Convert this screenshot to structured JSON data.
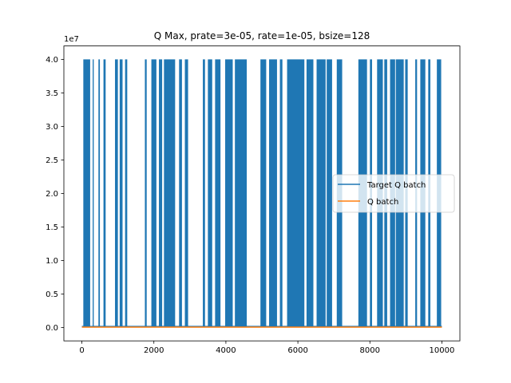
{
  "chart_data": {
    "type": "line",
    "title": "Q Max, prate=3e-05, rate=1e-05, bsize=128",
    "xlabel": "",
    "ylabel": "",
    "y_offset_label": "1e7",
    "xlim": [
      -500,
      10500
    ],
    "ylim": [
      -2000000,
      42000000
    ],
    "x_ticks": [
      0,
      2000,
      4000,
      6000,
      8000,
      10000
    ],
    "x_tick_labels": [
      "0",
      "2000",
      "4000",
      "6000",
      "8000",
      "10000"
    ],
    "y_ticks": [
      0,
      5000000,
      10000000,
      15000000,
      20000000,
      25000000,
      30000000,
      35000000,
      40000000
    ],
    "y_tick_labels": [
      "0.0",
      "0.5",
      "1.0",
      "1.5",
      "2.0",
      "2.5",
      "3.0",
      "3.5",
      "4.0"
    ],
    "grid": false,
    "legend_position": "center-right",
    "series": [
      {
        "name": "Target Q batch",
        "color": "#1f77b4",
        "baseline": 150000,
        "peak": 40000000,
        "dense_spike_ranges": [
          [
            40,
            230
          ],
          [
            300,
            330
          ],
          [
            460,
            500
          ],
          [
            600,
            660
          ],
          [
            920,
            1000
          ],
          [
            1050,
            1130
          ],
          [
            1200,
            1260
          ],
          [
            1750,
            1800
          ],
          [
            1930,
            2070
          ],
          [
            2140,
            2230
          ],
          [
            2280,
            2590
          ],
          [
            2700,
            2780
          ],
          [
            2860,
            2950
          ],
          [
            3360,
            3420
          ],
          [
            3500,
            3620
          ],
          [
            3700,
            3850
          ],
          [
            3980,
            4190
          ],
          [
            4250,
            4580
          ],
          [
            4960,
            5120
          ],
          [
            5200,
            5420
          ],
          [
            5500,
            5570
          ],
          [
            5700,
            6180
          ],
          [
            6240,
            6430
          ],
          [
            6520,
            6770
          ],
          [
            6800,
            6950
          ],
          [
            7080,
            7230
          ],
          [
            7680,
            7920
          ],
          [
            8000,
            8060
          ],
          [
            8200,
            8360
          ],
          [
            8400,
            8480
          ],
          [
            8560,
            8700
          ],
          [
            8720,
            8940
          ],
          [
            8980,
            9050
          ],
          [
            9260,
            9310
          ],
          [
            9400,
            9540
          ],
          [
            9620,
            9680
          ],
          [
            9860,
            9980
          ]
        ]
      },
      {
        "name": "Q batch",
        "color": "#ff7f0e",
        "value": 50000
      }
    ]
  }
}
